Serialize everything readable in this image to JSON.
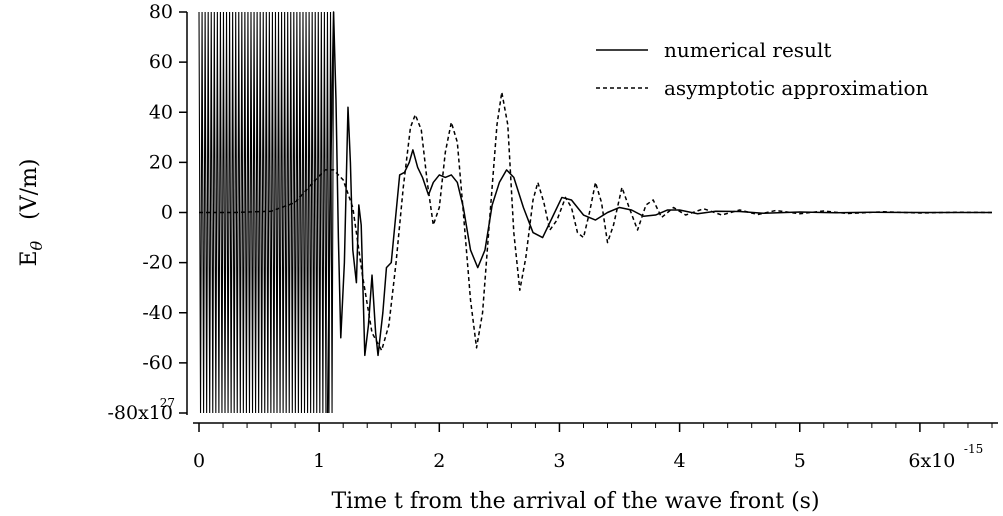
{
  "chart_data": {
    "type": "line",
    "xlabel": "Time t from the arrival of the wave front  (s)",
    "ylabel": "E",
    "ylabel_subscript": "θ",
    "yunit": "(V/m)",
    "xlim": [
      -0.05,
      6.65
    ],
    "ylim": [
      -80,
      80
    ],
    "x_ticks": [
      0,
      1,
      2,
      3,
      4,
      5,
      6
    ],
    "x_tick_labels": [
      "0",
      "1",
      "2",
      "3",
      "4",
      "5",
      "6x10"
    ],
    "x_exponent": "-15",
    "y_ticks": [
      80,
      60,
      40,
      20,
      0,
      -20,
      -40,
      -60,
      -80
    ],
    "y_tick_labels": [
      "80",
      "60",
      "40",
      "20",
      "0",
      "-20",
      "-40",
      "-60",
      "-80x10"
    ],
    "y_exponent": "27",
    "legend_position": "top-right",
    "grid": false,
    "series": [
      {
        "name": "numerical result",
        "style": "solid",
        "color": "#000000",
        "points": [
          [
            1.07,
            -80
          ],
          [
            1.09,
            0
          ],
          [
            1.12,
            80
          ],
          [
            1.14,
            45
          ],
          [
            1.16,
            -10
          ],
          [
            1.18,
            -50
          ],
          [
            1.21,
            -20
          ],
          [
            1.24,
            42
          ],
          [
            1.26,
            20
          ],
          [
            1.28,
            -15
          ],
          [
            1.31,
            -28
          ],
          [
            1.33,
            3
          ],
          [
            1.35,
            -5
          ],
          [
            1.38,
            -57
          ],
          [
            1.41,
            -45
          ],
          [
            1.44,
            -25
          ],
          [
            1.47,
            -48
          ],
          [
            1.49,
            -57
          ],
          [
            1.53,
            -40
          ],
          [
            1.56,
            -22
          ],
          [
            1.6,
            -20
          ],
          [
            1.63,
            -5
          ],
          [
            1.67,
            15
          ],
          [
            1.71,
            16
          ],
          [
            1.75,
            20
          ],
          [
            1.78,
            25
          ],
          [
            1.82,
            18
          ],
          [
            1.86,
            14
          ],
          [
            1.91,
            7
          ],
          [
            1.95,
            12
          ],
          [
            2.0,
            15
          ],
          [
            2.05,
            14
          ],
          [
            2.1,
            15
          ],
          [
            2.15,
            12
          ],
          [
            2.2,
            2
          ],
          [
            2.26,
            -15
          ],
          [
            2.32,
            -22
          ],
          [
            2.38,
            -15
          ],
          [
            2.44,
            3
          ],
          [
            2.5,
            12
          ],
          [
            2.56,
            17
          ],
          [
            2.62,
            14
          ],
          [
            2.7,
            2
          ],
          [
            2.78,
            -8
          ],
          [
            2.86,
            -10
          ],
          [
            2.94,
            -2
          ],
          [
            3.02,
            6
          ],
          [
            3.1,
            5
          ],
          [
            3.2,
            -1
          ],
          [
            3.3,
            -3
          ],
          [
            3.4,
            0
          ],
          [
            3.5,
            2
          ],
          [
            3.6,
            1
          ],
          [
            3.7,
            -1.5
          ],
          [
            3.8,
            -1
          ],
          [
            3.9,
            1
          ],
          [
            4.0,
            1
          ],
          [
            4.15,
            -0.5
          ],
          [
            4.3,
            0.5
          ],
          [
            4.5,
            0.4
          ],
          [
            4.7,
            -0.3
          ],
          [
            5.0,
            0.2
          ],
          [
            5.3,
            -0.1
          ],
          [
            5.6,
            0.1
          ],
          [
            6.0,
            0
          ],
          [
            6.6,
            0
          ]
        ]
      },
      {
        "name": "asymptotic approximation",
        "style": "dashed",
        "color": "#000000",
        "points": [
          [
            0.0,
            0
          ],
          [
            0.3,
            0
          ],
          [
            0.6,
            0.5
          ],
          [
            0.8,
            4
          ],
          [
            0.95,
            12
          ],
          [
            1.05,
            17
          ],
          [
            1.12,
            17
          ],
          [
            1.2,
            13
          ],
          [
            1.28,
            2
          ],
          [
            1.36,
            -25
          ],
          [
            1.44,
            -48
          ],
          [
            1.52,
            -55
          ],
          [
            1.58,
            -45
          ],
          [
            1.64,
            -20
          ],
          [
            1.7,
            10
          ],
          [
            1.76,
            34
          ],
          [
            1.8,
            39
          ],
          [
            1.85,
            33
          ],
          [
            1.9,
            12
          ],
          [
            1.95,
            -5
          ],
          [
            2.0,
            2
          ],
          [
            2.05,
            24
          ],
          [
            2.1,
            36
          ],
          [
            2.15,
            28
          ],
          [
            2.2,
            0
          ],
          [
            2.26,
            -35
          ],
          [
            2.31,
            -54
          ],
          [
            2.36,
            -40
          ],
          [
            2.42,
            -2
          ],
          [
            2.48,
            35
          ],
          [
            2.52,
            48
          ],
          [
            2.57,
            35
          ],
          [
            2.62,
            -8
          ],
          [
            2.67,
            -31
          ],
          [
            2.72,
            -18
          ],
          [
            2.78,
            5
          ],
          [
            2.82,
            12
          ],
          [
            2.87,
            4
          ],
          [
            2.92,
            -7
          ],
          [
            2.98,
            -3
          ],
          [
            3.05,
            6
          ],
          [
            3.1,
            2
          ],
          [
            3.15,
            -8
          ],
          [
            3.2,
            -10
          ],
          [
            3.25,
            0
          ],
          [
            3.3,
            12
          ],
          [
            3.35,
            4
          ],
          [
            3.4,
            -12
          ],
          [
            3.45,
            -5
          ],
          [
            3.52,
            10
          ],
          [
            3.58,
            2
          ],
          [
            3.65,
            -7
          ],
          [
            3.72,
            3
          ],
          [
            3.78,
            5
          ],
          [
            3.85,
            -2
          ],
          [
            3.95,
            2
          ],
          [
            4.05,
            -1
          ],
          [
            4.2,
            1.5
          ],
          [
            4.35,
            -1
          ],
          [
            4.5,
            1
          ],
          [
            4.65,
            -0.8
          ],
          [
            4.8,
            0.8
          ],
          [
            5.0,
            -0.5
          ],
          [
            5.2,
            0.6
          ],
          [
            5.4,
            -0.4
          ],
          [
            5.7,
            0.3
          ],
          [
            6.0,
            -0.2
          ],
          [
            6.3,
            0.1
          ],
          [
            6.6,
            0
          ]
        ]
      }
    ],
    "oscillation_band": {
      "x_start": 0.0,
      "x_end": 1.12,
      "y_min": -80,
      "y_max": 80,
      "cycles": 44
    }
  }
}
